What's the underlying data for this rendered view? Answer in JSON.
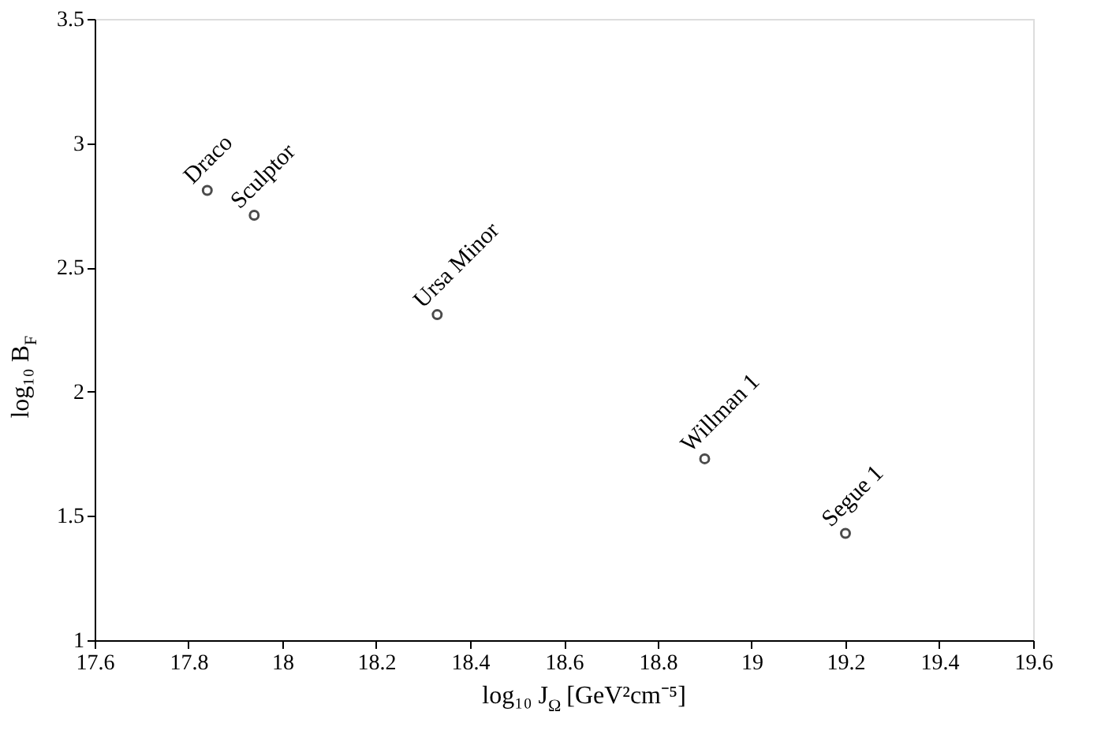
{
  "chart_data": {
    "type": "scatter",
    "xlabel": "log₁₀ J$_{Ω}$ [GeV²cm⁻⁵]",
    "ylabel": "log₁₀ B$_{F}$",
    "x": [
      17.84,
      17.94,
      18.33,
      18.9,
      19.2
    ],
    "series": [
      {
        "color": "#000000",
        "values": [
          2.81,
          2.71,
          2.31,
          1.73,
          1.43
        ]
      }
    ],
    "annotations": [
      {
        "text": "Draco",
        "x": 17.84,
        "y": 2.81
      },
      {
        "text": "Sculptor",
        "x": 17.94,
        "y": 2.71
      },
      {
        "text": "Ursa Minor",
        "x": 18.33,
        "y": 2.31
      },
      {
        "text": "Willman 1",
        "x": 18.9,
        "y": 1.73
      },
      {
        "text": "Segue 1",
        "x": 19.2,
        "y": 1.43
      }
    ],
    "xlim": [
      17.6,
      19.6
    ],
    "xticks": [
      17.6,
      17.8,
      {
        "value": 18,
        "label": "18"
      },
      18.2,
      18.4,
      18.6,
      18.8,
      {
        "value": 19,
        "label": "19"
      },
      19.2,
      19.4,
      19.6
    ],
    "ylim": [
      1,
      3.5
    ],
    "yticks": [
      {
        "value": 1,
        "label": "1"
      },
      1.5,
      {
        "value": 2,
        "label": "2"
      },
      2.5,
      {
        "value": 3,
        "label": "3"
      },
      3.5
    ],
    "grid": false,
    "marker": "circle"
  }
}
